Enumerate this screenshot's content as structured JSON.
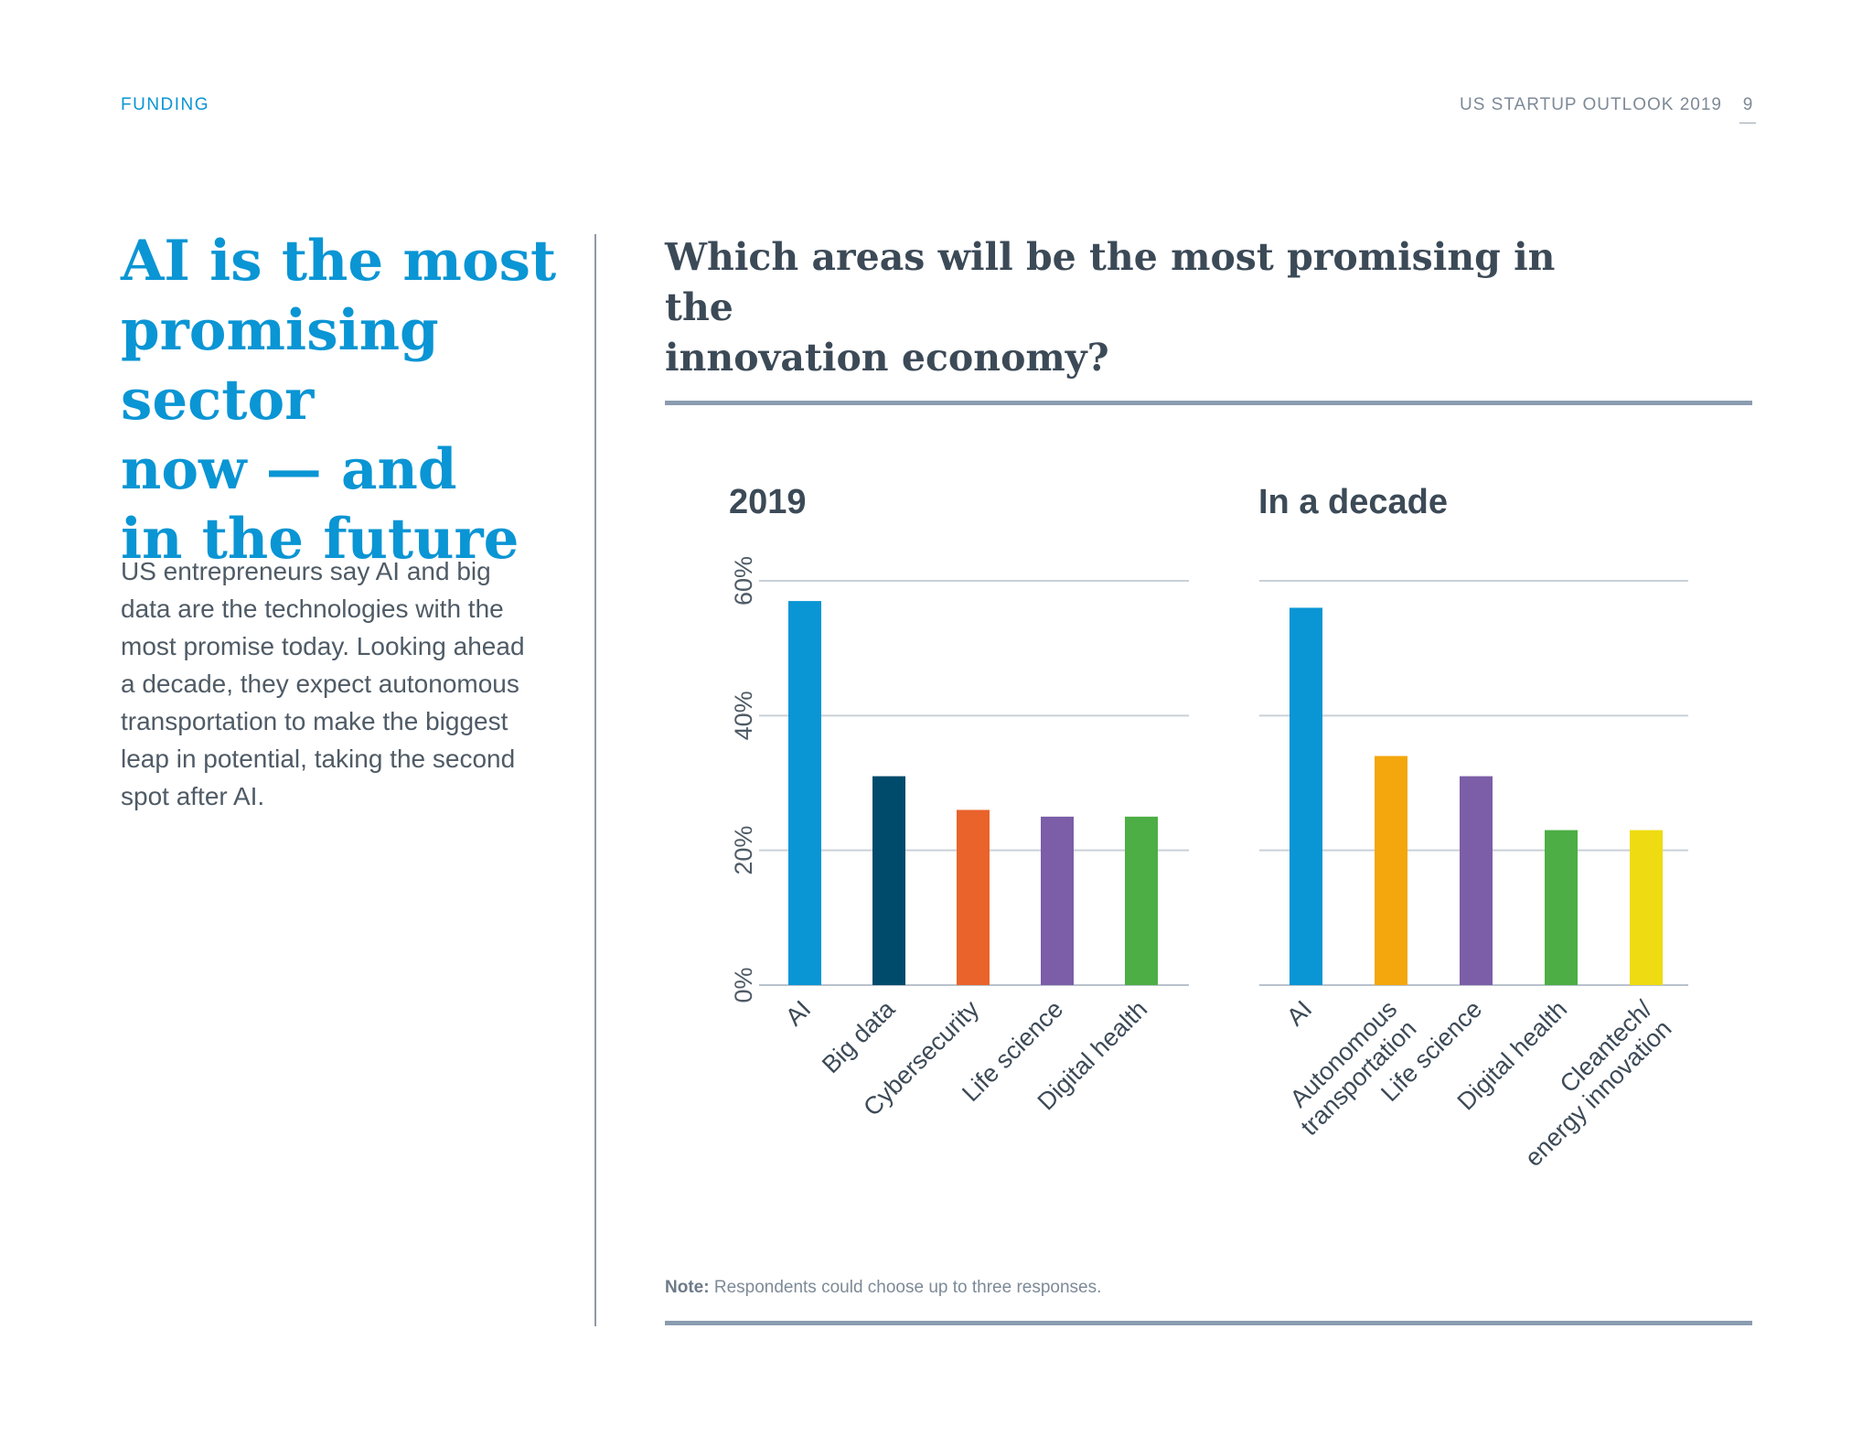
{
  "header": {
    "section": "FUNDING",
    "publication": "US STARTUP OUTLOOK 2019",
    "page_number": "9"
  },
  "left": {
    "headline_lines": [
      "AI is the most",
      "promising sector",
      "now — and",
      "in the future"
    ],
    "body_lines": [
      "US entrepreneurs say AI and big",
      "data are the technologies with the",
      "most promise today. Looking ahead",
      "a decade, they expect autonomous",
      "transportation to make the biggest",
      "leap in potential, taking the second",
      "spot after AI."
    ]
  },
  "question_lines": [
    "Which areas will be the most promising in the",
    "innovation economy?"
  ],
  "note": {
    "label": "Note:",
    "text": " Respondents could choose up to three responses."
  },
  "chart_data": [
    {
      "type": "bar",
      "title": "2019",
      "categories": [
        "AI",
        "Big data",
        "Cybersecurity",
        "Life science",
        "Digital health"
      ],
      "values": [
        57,
        31,
        26,
        25,
        25
      ],
      "colors": [
        "#0a95d4",
        "#004b6b",
        "#e9632b",
        "#7b5ea7",
        "#4cae44"
      ],
      "ylim": [
        0,
        60
      ],
      "yticks": [
        "0%",
        "20%",
        "40%",
        "60%"
      ],
      "grid": true
    },
    {
      "type": "bar",
      "title": "In a decade",
      "categories": [
        "AI",
        "Autonomous transportation",
        "Life science",
        "Digital health",
        "Cleantech/ energy innovation"
      ],
      "category_lines": [
        [
          "AI"
        ],
        [
          "Autonomous",
          "transportation"
        ],
        [
          "Life science"
        ],
        [
          "Digital health"
        ],
        [
          "Cleantech/",
          "energy innovation"
        ]
      ],
      "values": [
        56,
        34,
        31,
        23,
        23
      ],
      "colors": [
        "#0a95d4",
        "#f3a70d",
        "#7b5ea7",
        "#4cae44",
        "#eedb12"
      ],
      "ylim": [
        0,
        60
      ],
      "grid": true
    }
  ]
}
